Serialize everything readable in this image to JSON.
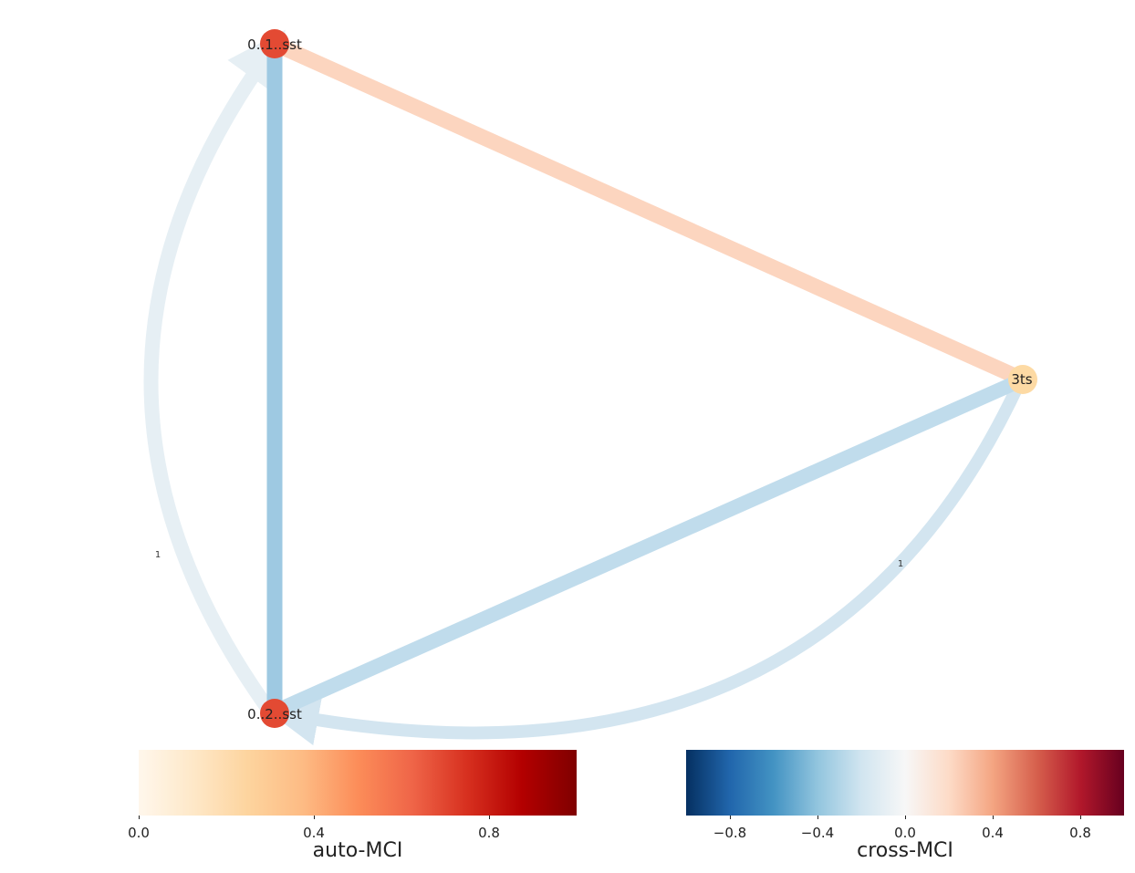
{
  "graph": {
    "nodes": [
      {
        "id": "n1",
        "label": "0..1..sst",
        "color": "#e34a33"
      },
      {
        "id": "n2",
        "label": "0..2..sst",
        "color": "#e34a33"
      },
      {
        "id": "n3",
        "label": "3ts",
        "color": "#fddaa4"
      }
    ],
    "edges": [
      {
        "id": "e13",
        "from": "n1",
        "to": "n3",
        "type": "link",
        "color": "#fcd5bf"
      },
      {
        "id": "e12",
        "from": "n1",
        "to": "n2",
        "type": "link",
        "color": "#9ec9e2"
      },
      {
        "id": "e23",
        "from": "n2",
        "to": "n3",
        "type": "link",
        "color": "#c0dcec"
      },
      {
        "id": "e21",
        "from": "n2",
        "to": "n1",
        "type": "arrow",
        "color": "#e6eff4",
        "label": "1"
      },
      {
        "id": "e32",
        "from": "n3",
        "to": "n2",
        "type": "arrow",
        "color": "#d3e5f0",
        "label": "1"
      }
    ]
  },
  "colorbars": {
    "auto": {
      "title": "auto-MCI",
      "ticks": [
        "0.0",
        "0.4",
        "0.8"
      ],
      "tick_values": [
        0.0,
        0.4,
        0.8
      ],
      "range": [
        0,
        1
      ],
      "colors": [
        "#fff7ec",
        "#fee8c8",
        "#fdd49e",
        "#fdbb84",
        "#fc8d59",
        "#ef6548",
        "#d7301f",
        "#b30000",
        "#7f0000"
      ]
    },
    "cross": {
      "title": "cross-MCI",
      "ticks": [
        "−0.8",
        "−0.4",
        "0.0",
        "0.4",
        "0.8"
      ],
      "tick_values": [
        -0.8,
        -0.4,
        0.0,
        0.4,
        0.8
      ],
      "range": [
        -1,
        1
      ],
      "colors": [
        "#053061",
        "#2166ac",
        "#4393c3",
        "#92c5de",
        "#d1e5f0",
        "#f7f7f7",
        "#fddbc7",
        "#f4a582",
        "#d6604d",
        "#b2182b",
        "#67001f"
      ]
    }
  }
}
